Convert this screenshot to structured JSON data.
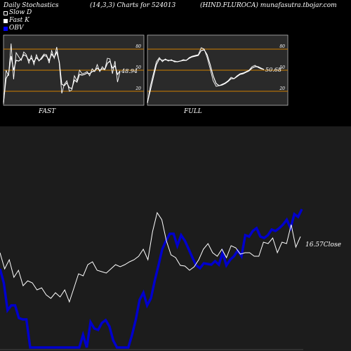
{
  "header": {
    "title": "Daily Stochastics",
    "params": "(14,3,3) Charts for 524013",
    "symbol_site": "(HIND.FLUROCA) munafasutra.tbojar.com"
  },
  "legend": [
    {
      "label": "Slow  D",
      "color": "#ffffff",
      "style": "hollow"
    },
    {
      "label": "Fast K",
      "color": "#ffffff",
      "style": "filled"
    },
    {
      "label": "OBV",
      "color": "#0000ff",
      "style": "filled"
    }
  ],
  "colors": {
    "background": "#000000",
    "panel": "#2a2a2a",
    "panel_border": "#cccccc",
    "band": "#d08000",
    "lines": "#ffffff",
    "obv": "#0000cc",
    "lower_bg": "#1c1c1c"
  },
  "chart_data": [
    {
      "type": "line",
      "panel_label": "FAST",
      "value_label": "48.94",
      "ylim": [
        0,
        100
      ],
      "yticks": [
        20,
        50,
        80
      ],
      "bands": [
        20,
        50,
        80
      ],
      "series": [
        {
          "style": "fast-k",
          "values": [
            2,
            50,
            42,
            88,
            37,
            75,
            69,
            64,
            76,
            72,
            60,
            71,
            58,
            72,
            63,
            68,
            73,
            72,
            60,
            78,
            67,
            83,
            60,
            17,
            30,
            35,
            20,
            22,
            42,
            35,
            50,
            45,
            46,
            48,
            42,
            52,
            48,
            58,
            48,
            55,
            51,
            67,
            66,
            45,
            63,
            33,
            48
          ]
        },
        {
          "style": "slow-d",
          "values": [
            4,
            38,
            45,
            70,
            50,
            64,
            63,
            66,
            72,
            70,
            64,
            67,
            62,
            68,
            64,
            66,
            71,
            70,
            64,
            73,
            68,
            76,
            62,
            30,
            28,
            32,
            25,
            24,
            36,
            33,
            44,
            43,
            44,
            46,
            45,
            48,
            49,
            53,
            50,
            52,
            51,
            60,
            63,
            53,
            56,
            44,
            49
          ]
        }
      ]
    },
    {
      "type": "line",
      "panel_label": "FULL",
      "value_label": "50.68",
      "ylim": [
        0,
        100
      ],
      "yticks": [
        20,
        50,
        80
      ],
      "bands": [
        20,
        50,
        80
      ],
      "series": [
        {
          "style": "full-k",
          "values": [
            3,
            28,
            45,
            62,
            68,
            62,
            66,
            63,
            65,
            62,
            62,
            63,
            65,
            64,
            68,
            70,
            71,
            72,
            82,
            80,
            68,
            52,
            35,
            27,
            28,
            30,
            32,
            35,
            40,
            38,
            42,
            45,
            46,
            48,
            50,
            55,
            57,
            54,
            52,
            51
          ]
        },
        {
          "style": "full-d",
          "values": [
            4,
            22,
            40,
            58,
            66,
            64,
            65,
            64,
            64,
            63,
            62,
            63,
            64,
            64,
            67,
            69,
            70,
            71,
            78,
            79,
            72,
            58,
            42,
            31,
            28,
            29,
            31,
            34,
            38,
            38,
            41,
            44,
            45,
            47,
            49,
            53,
            55,
            55,
            53,
            51
          ]
        }
      ]
    },
    {
      "type": "line",
      "panel_label": "Close",
      "value_label": "16.57",
      "series": [
        {
          "name": "OBV",
          "values": [
            112,
            92,
            53,
            60,
            60,
            42,
            40,
            40,
            0,
            0,
            0,
            0,
            0,
            0,
            0,
            0,
            0,
            0,
            0,
            0,
            0,
            0,
            18,
            0,
            36,
            27,
            25,
            35,
            39,
            30,
            10,
            0,
            0,
            0,
            0,
            18,
            40,
            68,
            78,
            60,
            70,
            95,
            117,
            140,
            152,
            162,
            162,
            145,
            160,
            152,
            140,
            128,
            117,
            113,
            120,
            119,
            118,
            123,
            118,
            135,
            117,
            125,
            130,
            138,
            130,
            160,
            158,
            166,
            170,
            158,
            156,
            160,
            168,
            166,
            170,
            175,
            182,
            170,
            190,
            186,
            197
          ]
        },
        {
          "name": "Close",
          "values": [
            135,
            112,
            125,
            100,
            110,
            88,
            95,
            92,
            82,
            85,
            75,
            70,
            78,
            72,
            82,
            65,
            85,
            105,
            102,
            118,
            122,
            110,
            108,
            106,
            112,
            118,
            115,
            118,
            122,
            125,
            130,
            140,
            125,
            165,
            192,
            182,
            152,
            132,
            128,
            117,
            116,
            110,
            115,
            125,
            140,
            148,
            135,
            130,
            140,
            128,
            145,
            142,
            133,
            135,
            135,
            130,
            130,
            150,
            148,
            156,
            135,
            150,
            148,
            175,
            143,
            158
          ]
        }
      ]
    }
  ]
}
